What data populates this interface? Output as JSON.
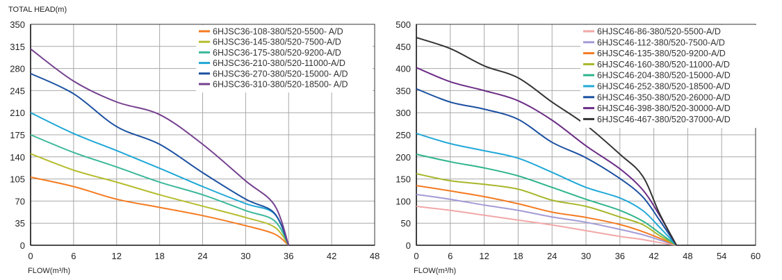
{
  "chart_data": [
    {
      "type": "line",
      "ylabel": "TOTAL HEAD(m)",
      "xlabel": "FLOW(m³/h)",
      "xlim": [
        0,
        48
      ],
      "ylim": [
        0,
        350
      ],
      "xticks": [
        0,
        6,
        12,
        18,
        24,
        30,
        36,
        42,
        48
      ],
      "yticks": [
        0,
        35,
        70,
        105,
        140,
        175,
        210,
        245,
        280,
        315,
        350
      ],
      "grid": true,
      "legend": "top-right",
      "x": [
        0,
        6,
        12,
        18,
        24,
        30,
        34,
        36
      ],
      "series": [
        {
          "name": "6HJSC36-108-380/520-5500- A/D",
          "color": "#f47a20",
          "values": [
            108,
            93,
            73,
            60,
            47,
            31,
            18,
            0
          ]
        },
        {
          "name": "6HJSC36-145-380/520-7500-A/D",
          "color": "#b5bd2e",
          "values": [
            145,
            119,
            100,
            80,
            62,
            44,
            29,
            0
          ]
        },
        {
          "name": "6HJSC36-175-380/520-9200-A/D",
          "color": "#3bb89a",
          "values": [
            175,
            147,
            124,
            100,
            80,
            55,
            39,
            0
          ]
        },
        {
          "name": "6HJSC36-210-380/520-11000-A/D",
          "color": "#1ea7d6",
          "values": [
            210,
            177,
            150,
            122,
            93,
            66,
            50,
            0
          ]
        },
        {
          "name": "6HJSC36-270-380/520-15000- A/D",
          "color": "#1a4fa0",
          "values": [
            272,
            240,
            188,
            160,
            115,
            73,
            51,
            0
          ]
        },
        {
          "name": "6HJSC36-310-380/520-18500- A/D",
          "color": "#74408f",
          "values": [
            311,
            260,
            227,
            207,
            160,
            102,
            64,
            0
          ]
        }
      ]
    },
    {
      "type": "line",
      "xlabel": "FLOW(m³/h)",
      "xlim": [
        0,
        60
      ],
      "ylim": [
        0,
        500
      ],
      "xticks": [
        0,
        6,
        12,
        18,
        24,
        30,
        36,
        42,
        48,
        54,
        60
      ],
      "yticks": [
        0,
        50,
        100,
        150,
        200,
        250,
        300,
        350,
        400,
        450,
        500
      ],
      "grid": true,
      "legend": "top-right",
      "x": [
        0,
        6,
        12,
        18,
        24,
        30,
        36,
        40,
        43,
        46
      ],
      "series": [
        {
          "name": "6HJSC46-86-380/520-5500-A/D",
          "color": "#f2a7a7",
          "values": [
            88,
            79,
            68,
            57,
            46,
            33,
            20,
            13,
            6,
            0
          ]
        },
        {
          "name": "6HJSC46-112-380/520-7500-A/D",
          "color": "#a49bd6",
          "values": [
            115,
            104,
            91,
            79,
            64,
            52,
            36,
            24,
            12,
            0
          ]
        },
        {
          "name": "6HJSC46-135-380/520-9200-A/D",
          "color": "#f47a20",
          "values": [
            135,
            123,
            110,
            94,
            75,
            63,
            47,
            31,
            16,
            0
          ]
        },
        {
          "name": "6HJSC46-160-380/520-11000-A/D",
          "color": "#a8b62a",
          "values": [
            162,
            146,
            138,
            127,
            102,
            88,
            64,
            47,
            22,
            0
          ]
        },
        {
          "name": "6HJSC46-204-380/520-15000-A/D",
          "color": "#2fb48c",
          "values": [
            206,
            189,
            175,
            157,
            131,
            104,
            79,
            55,
            28,
            0
          ]
        },
        {
          "name": "6HJSC46-252-380/520-18500-A/D",
          "color": "#20a8d8",
          "values": [
            253,
            230,
            214,
            197,
            165,
            131,
            107,
            79,
            41,
            0
          ]
        },
        {
          "name": "6HJSC46-350-380/520-26000-A/D",
          "color": "#1a4fa0",
          "values": [
            354,
            324,
            308,
            285,
            233,
            198,
            151,
            110,
            57,
            0
          ]
        },
        {
          "name": "6HJSC46-398-380/520-30000-A/D",
          "color": "#6b2c86",
          "values": [
            402,
            370,
            350,
            327,
            283,
            225,
            173,
            126,
            68,
            0
          ]
        },
        {
          "name": "6HJSC46-467-380/520-37000-A/D",
          "color": "#333333",
          "values": [
            470,
            445,
            406,
            379,
            324,
            272,
            206,
            157,
            72,
            0
          ]
        }
      ]
    }
  ]
}
